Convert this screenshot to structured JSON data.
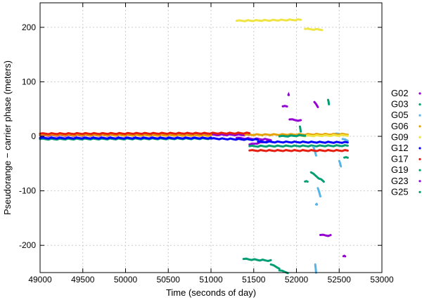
{
  "chart_data": {
    "type": "scatter",
    "title": "",
    "xlabel": "Time (seconds of day)",
    "ylabel": "Pseudorange − carrier phase (meters)",
    "xlim": [
      49000,
      53000
    ],
    "ylim": [
      -250,
      245
    ],
    "xticks": [
      49000,
      49500,
      50000,
      50500,
      51000,
      51500,
      52000,
      52500,
      53000
    ],
    "yticks": [
      -200,
      -100,
      0,
      100,
      200
    ],
    "grid": true,
    "legend_position": "right-outside",
    "series": [
      {
        "name": "G02",
        "color": "#9400d3",
        "segments": [
          [
            49000,
            2,
            51450,
            3
          ],
          [
            51300,
            -3,
            51700,
            -6
          ],
          [
            51450,
            -15,
            51700,
            -8
          ],
          [
            51840,
            55,
            51890,
            55
          ],
          [
            51905,
            76,
            51910,
            76
          ],
          [
            51920,
            31,
            52050,
            29
          ]
        ]
      },
      {
        "name": "G03",
        "color": "#009e73",
        "segments": [
          [
            49000,
            -5,
            51000,
            -4
          ],
          [
            51450,
            -18,
            52600,
            -17
          ],
          [
            52560,
            -39,
            52600,
            -39
          ]
        ]
      },
      {
        "name": "G05",
        "color": "#56b4e9",
        "segments": [
          [
            52460,
            5,
            52520,
            3
          ],
          [
            52500,
            -45,
            52520,
            -55
          ],
          [
            52200,
            -20,
            52230,
            -35
          ],
          [
            52250,
            -95,
            52280,
            -110
          ],
          [
            52230,
            -125,
            52240,
            -125
          ],
          [
            52220,
            -235,
            52230,
            -250
          ],
          [
            52540,
            -5,
            52600,
            -8
          ]
        ]
      },
      {
        "name": "G06",
        "color": "#e69f00",
        "segments": [
          [
            49000,
            3,
            51000,
            2
          ],
          [
            51400,
            3,
            52600,
            4
          ]
        ]
      },
      {
        "name": "G09",
        "color": "#f0e442",
        "segments": [
          [
            51300,
            212,
            52050,
            214
          ],
          [
            52100,
            197,
            52300,
            196
          ],
          [
            52000,
            1,
            52600,
            2
          ]
        ]
      },
      {
        "name": "G12",
        "color": "#0000ff",
        "segments": [
          [
            49000,
            -3,
            51000,
            -3
          ],
          [
            51000,
            -4,
            51550,
            -6
          ],
          [
            51550,
            -10,
            52600,
            -11
          ]
        ]
      },
      {
        "name": "G17",
        "color": "#e51e10",
        "segments": [
          [
            49000,
            5,
            51450,
            6
          ],
          [
            51450,
            -26,
            52600,
            -26
          ]
        ]
      },
      {
        "name": "G19",
        "color": "#009e73",
        "segments": [
          [
            51800,
            0,
            52100,
            2
          ],
          [
            52040,
            18,
            52050,
            9
          ],
          [
            52370,
            67,
            52380,
            59
          ],
          [
            52170,
            -66,
            52320,
            -83
          ],
          [
            52100,
            -83,
            52130,
            -83
          ]
        ]
      },
      {
        "name": "G23",
        "color": "#9400d3",
        "segments": [
          [
            52210,
            63,
            52250,
            54
          ],
          [
            52280,
            -181,
            52400,
            -182
          ],
          [
            52550,
            -220,
            52570,
            -220
          ]
        ]
      },
      {
        "name": "G25",
        "color": "#009e73",
        "segments": [
          [
            51380,
            -225,
            51700,
            -228
          ],
          [
            51700,
            -235,
            51800,
            -242
          ],
          [
            51800,
            -246,
            51900,
            -250
          ]
        ]
      }
    ]
  }
}
